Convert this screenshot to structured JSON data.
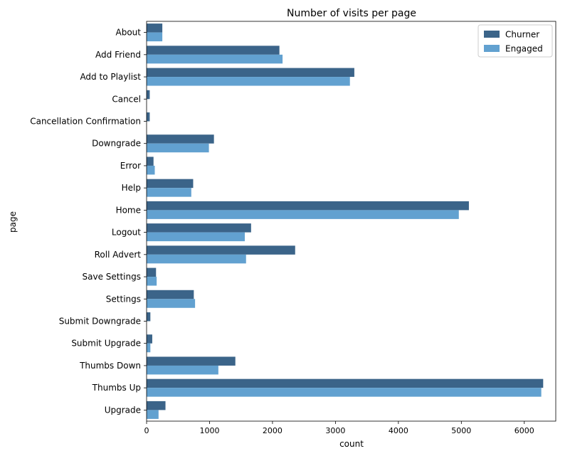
{
  "chart_data": {
    "type": "bar",
    "orientation": "horizontal",
    "title": "Number of visits per page",
    "xlabel": "count",
    "ylabel": "page",
    "xlim": [
      0,
      6500
    ],
    "xticks": [
      0,
      1000,
      2000,
      3000,
      4000,
      5000,
      6000
    ],
    "grid": false,
    "legend_position": "top-right",
    "categories": [
      "About",
      "Add Friend",
      "Add to Playlist",
      "Cancel",
      "Cancellation Confirmation",
      "Downgrade",
      "Error",
      "Help",
      "Home",
      "Logout",
      "Roll Advert",
      "Save Settings",
      "Settings",
      "Submit Downgrade",
      "Submit Upgrade",
      "Thumbs Down",
      "Thumbs Up",
      "Upgrade"
    ],
    "series": [
      {
        "name": "Churner",
        "color": "#3b6489",
        "values": [
          250,
          2110,
          3300,
          50,
          50,
          1070,
          110,
          740,
          5120,
          1660,
          2360,
          150,
          750,
          60,
          90,
          1410,
          6300,
          300
        ]
      },
      {
        "name": "Engaged",
        "color": "#62a1d0",
        "values": [
          250,
          2160,
          3230,
          0,
          0,
          990,
          130,
          710,
          4960,
          1560,
          1580,
          160,
          770,
          0,
          60,
          1140,
          6270,
          190
        ]
      }
    ]
  }
}
